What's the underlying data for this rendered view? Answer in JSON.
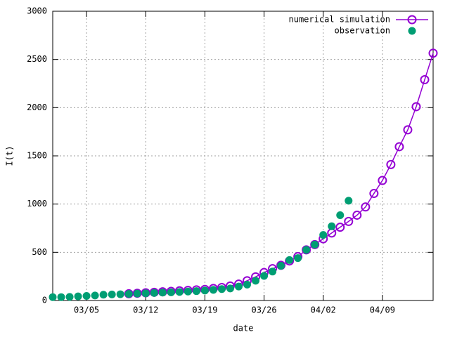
{
  "chart_data": {
    "type": "line",
    "xlabel": "date",
    "ylabel": "I(t)",
    "xlim": [
      "03/01",
      "04/15"
    ],
    "xticks": [
      "03/05",
      "03/12",
      "03/19",
      "03/26",
      "04/02",
      "04/09"
    ],
    "ylim": [
      0,
      3000
    ],
    "yticks": [
      0,
      500,
      1000,
      1500,
      2000,
      2500,
      3000
    ],
    "grid": true,
    "legend": "top-right",
    "series": [
      {
        "name": "numerical simulation",
        "color": "#9400d3",
        "marker": "open-circle",
        "line": true,
        "x": [
          "03/10",
          "03/11",
          "03/12",
          "03/13",
          "03/14",
          "03/15",
          "03/16",
          "03/17",
          "03/18",
          "03/19",
          "03/20",
          "03/21",
          "03/22",
          "03/23",
          "03/24",
          "03/25",
          "03/26",
          "03/27",
          "03/28",
          "03/29",
          "03/30",
          "03/31",
          "04/01",
          "04/02",
          "04/03",
          "04/04",
          "04/05",
          "04/06",
          "04/07",
          "04/08",
          "04/09",
          "04/10",
          "04/11",
          "04/12",
          "04/13",
          "04/14",
          "04/15"
        ],
        "values": [
          70,
          75,
          80,
          85,
          90,
          95,
          100,
          105,
          110,
          115,
          125,
          135,
          150,
          170,
          205,
          245,
          290,
          330,
          365,
          410,
          455,
          525,
          580,
          640,
          700,
          760,
          820,
          885,
          970,
          1110,
          1245,
          1410,
          1595,
          1770,
          2010,
          2290,
          2565
        ]
      },
      {
        "name": "observation",
        "color": "#009e73",
        "marker": "filled-circle",
        "line": false,
        "x": [
          "03/01",
          "03/02",
          "03/03",
          "03/04",
          "03/05",
          "03/06",
          "03/07",
          "03/08",
          "03/09",
          "03/10",
          "03/11",
          "03/12",
          "03/13",
          "03/14",
          "03/15",
          "03/16",
          "03/17",
          "03/18",
          "03/19",
          "03/20",
          "03/21",
          "03/22",
          "03/23",
          "03/24",
          "03/25",
          "03/26",
          "03/27",
          "03/28",
          "03/29",
          "03/30",
          "03/31",
          "04/01",
          "04/02",
          "04/03",
          "04/04",
          "04/05"
        ],
        "values": [
          35,
          35,
          37,
          43,
          47,
          52,
          60,
          63,
          65,
          68,
          72,
          75,
          78,
          82,
          85,
          88,
          93,
          97,
          103,
          110,
          118,
          125,
          145,
          165,
          205,
          255,
          300,
          360,
          420,
          440,
          525,
          580,
          680,
          770,
          885,
          1035
        ]
      }
    ]
  }
}
